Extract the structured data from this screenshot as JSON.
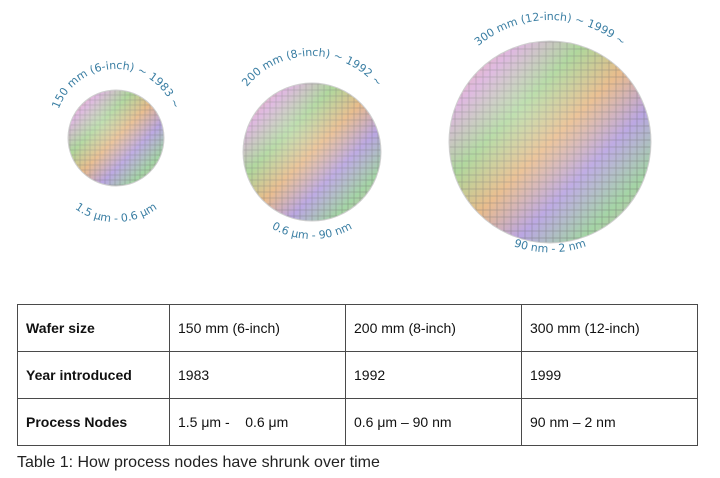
{
  "wafers": [
    {
      "diameter_label": "150 mm (6-inch) ~ 1983 ~",
      "node_label": "1.5 μm - 0.6 μm"
    },
    {
      "diameter_label": "200 mm (8-inch) ~ 1992 ~",
      "node_label": "0.6 μm - 90 nm"
    },
    {
      "diameter_label": "300 mm (12-inch) ~ 1999 ~",
      "node_label": "90 nm - 2 nm"
    }
  ],
  "colors": {
    "label_blue": "#3a7ea3",
    "die_grid": "#6b6b6b"
  },
  "table": {
    "rows": [
      {
        "header": "Wafer size",
        "cells": [
          "150 mm (6-inch)",
          "200 mm (8-inch)",
          "300 mm (12-inch)"
        ]
      },
      {
        "header": "Year introduced",
        "cells": [
          "1983",
          "1992",
          "1999"
        ]
      },
      {
        "header": "Process Nodes",
        "cells": [
          "1.5 μm -    0.6 μm",
          "0.6 μm – 90 nm",
          "90 nm – 2 nm"
        ]
      }
    ]
  },
  "caption": "Table 1: How process nodes have shrunk over time"
}
